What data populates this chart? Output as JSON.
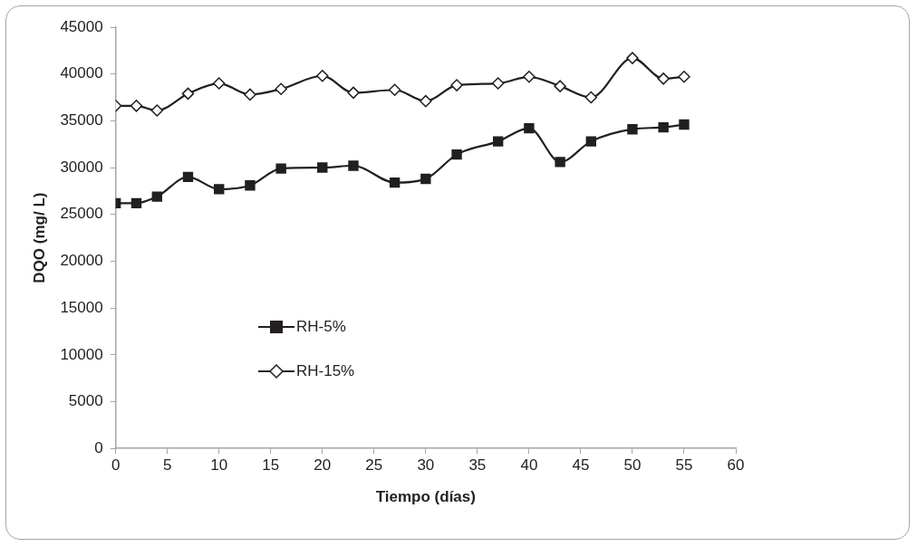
{
  "chart_data": {
    "type": "line",
    "xlabel": "Tiempo (días)",
    "ylabel": "DQO (mg/ L)",
    "x": [
      0,
      2,
      4,
      7,
      10,
      13,
      16,
      20,
      23,
      27,
      30,
      33,
      37,
      40,
      43,
      46,
      50,
      53,
      55
    ],
    "series": [
      {
        "name": "RH-5%",
        "color": "#231f20",
        "marker": "square",
        "values": [
          26200,
          26200,
          26900,
          29000,
          27700,
          28100,
          29900,
          30000,
          30200,
          28400,
          28800,
          31400,
          32800,
          34200,
          30600,
          32800,
          34100,
          34300,
          34600
        ]
      },
      {
        "name": "RH-15%",
        "color": "#231f20",
        "marker": "diamond",
        "values": [
          36600,
          36600,
          36100,
          37900,
          39000,
          37800,
          38400,
          39800,
          38000,
          38300,
          37100,
          38800,
          39000,
          39700,
          38700,
          37500,
          41700,
          39500,
          39700
        ]
      }
    ],
    "xlim": [
      0,
      60
    ],
    "xticks": [
      0,
      5,
      10,
      15,
      20,
      25,
      30,
      35,
      40,
      45,
      50,
      55,
      60
    ],
    "ylim": [
      0,
      45000
    ],
    "yticks": [
      0,
      5000,
      10000,
      15000,
      20000,
      25000,
      30000,
      35000,
      40000,
      45000
    ],
    "grid": false,
    "legend": "left"
  }
}
